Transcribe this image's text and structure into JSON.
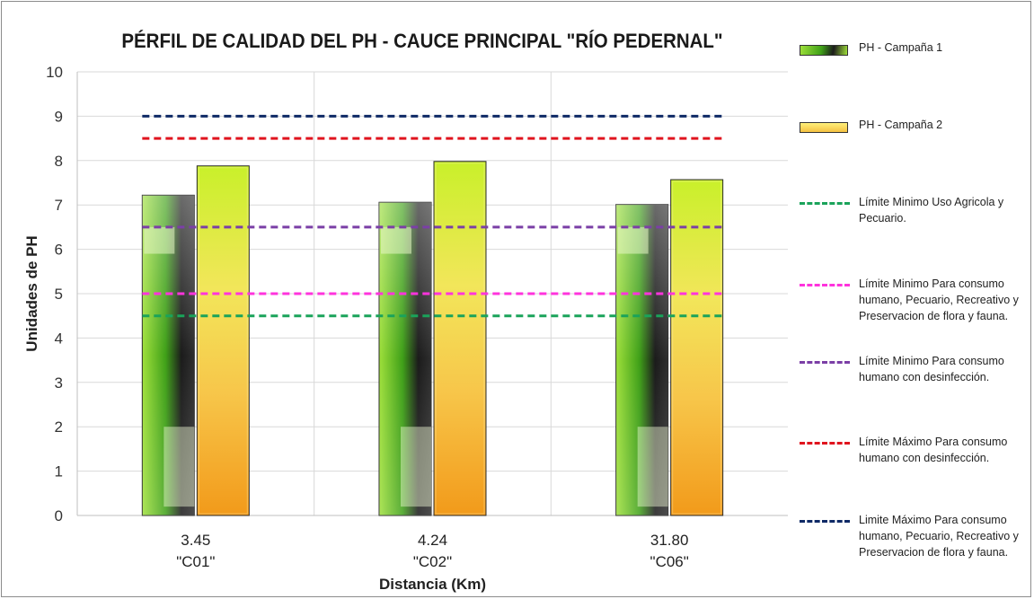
{
  "chart_data": {
    "type": "bar",
    "title": "PÉRFIL DE CALIDAD DEL PH - CAUCE PRINCIPAL \"RÍO PEDERNAL\"",
    "xlabel": "Distancia (Km)",
    "ylabel": "Unidades de PH",
    "ylim": [
      0,
      10
    ],
    "yticks": [
      "0",
      "1",
      "2",
      "3",
      "4",
      "5",
      "6",
      "7",
      "8",
      "9",
      "10"
    ],
    "categories": [
      {
        "distance": "3.45",
        "code": "\"C01\""
      },
      {
        "distance": "4.24",
        "code": "\"C02\""
      },
      {
        "distance": "31.80",
        "code": "\"C06\""
      }
    ],
    "grid": true,
    "legend_position": "right",
    "series": [
      {
        "name": "PH - Campaña 1",
        "values": [
          7.22,
          7.06,
          7.01
        ],
        "color": "#4caf1f"
      },
      {
        "name": "PH - Campaña 2",
        "values": [
          7.88,
          7.98,
          7.57
        ],
        "color": "#f5c142"
      }
    ],
    "reference_lines": [
      {
        "name": "Límite Minimo Uso Agricola y Pecuario.",
        "value": 4.5,
        "color": "#1aa35a"
      },
      {
        "name": "Límite Minimo  Para consumo humano, Pecuario, Recreativo y Preservacion de flora y fauna.",
        "value": 5.0,
        "color": "#ff33dd"
      },
      {
        "name": "Límite Minimo Para consumo humano con desinfección.",
        "value": 6.5,
        "color": "#7b3fa6"
      },
      {
        "name": "Límite Máximo  Para consumo humano con desinfección.",
        "value": 8.5,
        "color": "#e0141e"
      },
      {
        "name": "Limite Máximo  Para consumo humano, Pecuario, Recreativo y Preservacion de flora y fauna.",
        "value": 9.0,
        "color": "#0f2a66"
      }
    ]
  },
  "legend": {
    "items": [
      {
        "label": "PH - Campaña 1",
        "kind": "bar",
        "color": "#4caf1f"
      },
      {
        "label": "PH - Campaña 2",
        "kind": "bar",
        "color": "#f5c142"
      },
      {
        "label": "Límite Minimo Uso Agricola y\nPecuario.",
        "kind": "line",
        "color": "#1aa35a"
      },
      {
        "label": "Límite Minimo  Para consumo\nhumano, Pecuario, Recreativo y\nPreservacion de flora y fauna.",
        "kind": "line",
        "color": "#ff33dd"
      },
      {
        "label": "Límite Minimo Para consumo\nhumano con desinfección.",
        "kind": "line",
        "color": "#7b3fa6"
      },
      {
        "label": "Límite Máximo  Para consumo\nhumano con desinfección.",
        "kind": "line",
        "color": "#e0141e"
      },
      {
        "label": "Limite Máximo  Para consumo\nhumano, Pecuario, Recreativo y\nPreservacion de flora y fauna.",
        "kind": "line",
        "color": "#0f2a66"
      }
    ]
  }
}
